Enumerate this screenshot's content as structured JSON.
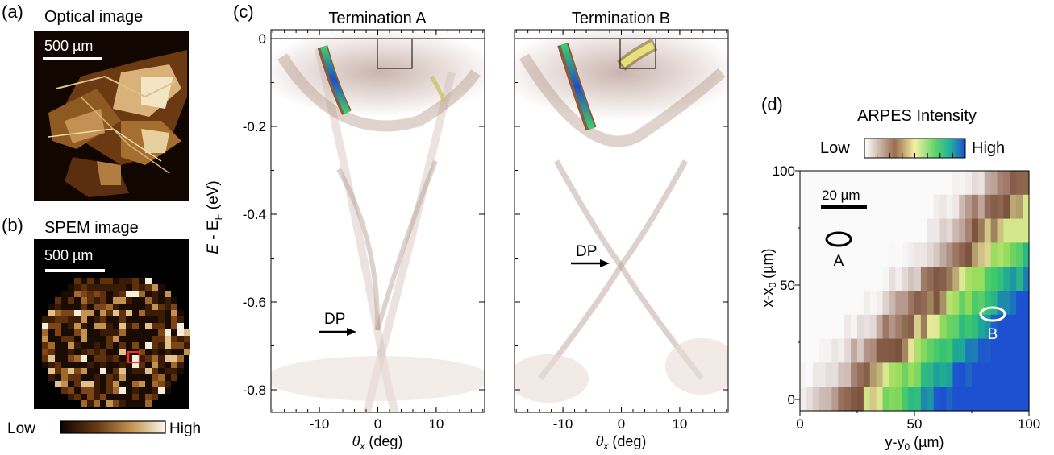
{
  "panels": {
    "a": {
      "label": "(a)",
      "title": "Optical image",
      "scalebar": "500 µm"
    },
    "b": {
      "label": "(b)",
      "title": "SPEM image",
      "scalebar": "500 µm",
      "colorbar": {
        "low": "Low",
        "high": "High"
      }
    },
    "c": {
      "label": "(c)",
      "left_title": "Termination A",
      "right_title": "Termination B",
      "ylabel_main": "E",
      "ylabel_sub": "F",
      "ylabel_text": "E - E_F (eV)",
      "ylabel_unit": "(eV)",
      "ylabel_dash": " - E",
      "xlabel_sym": "θ",
      "xlabel_sub": "x",
      "xlabel_unit": "(deg)",
      "yticks": [
        0,
        -0.2,
        -0.4,
        -0.6,
        -0.8
      ],
      "ytick_labels": [
        "0",
        "-0.2",
        "-0.4",
        "-0.6",
        "-0.8"
      ],
      "xticks": [
        -10,
        0,
        10
      ],
      "xtick_labels": [
        "-10",
        "0",
        "10"
      ],
      "dp_label": "DP",
      "dp_energy_A": -0.67,
      "dp_energy_B": -0.51
    },
    "d": {
      "label": "(d)",
      "colorbar_title": "ARPES Intensity",
      "low": "Low",
      "high": "High",
      "scalebar": "20 µm",
      "xlabel": "y-y",
      "xlabel_sub": "0",
      "xlabel_unit": " (µm)",
      "ylabel": "x-x",
      "ylabel_sub": "0",
      "ylabel_unit": " (µm)",
      "xticks": [
        "0",
        "50",
        "100"
      ],
      "yticks": [
        "0",
        "50",
        "100"
      ],
      "marker_A": "A",
      "marker_B": "B"
    }
  },
  "colors": {
    "copper_dark": "#140800",
    "copper_light": "#f3ead8",
    "arpes_low": "#ffffff",
    "arpes_mid": "#8b5a3c",
    "arpes_yellow": "#f3ef8a",
    "arpes_green": "#3fcf6a",
    "arpes_high": "#1d5fd6"
  }
}
